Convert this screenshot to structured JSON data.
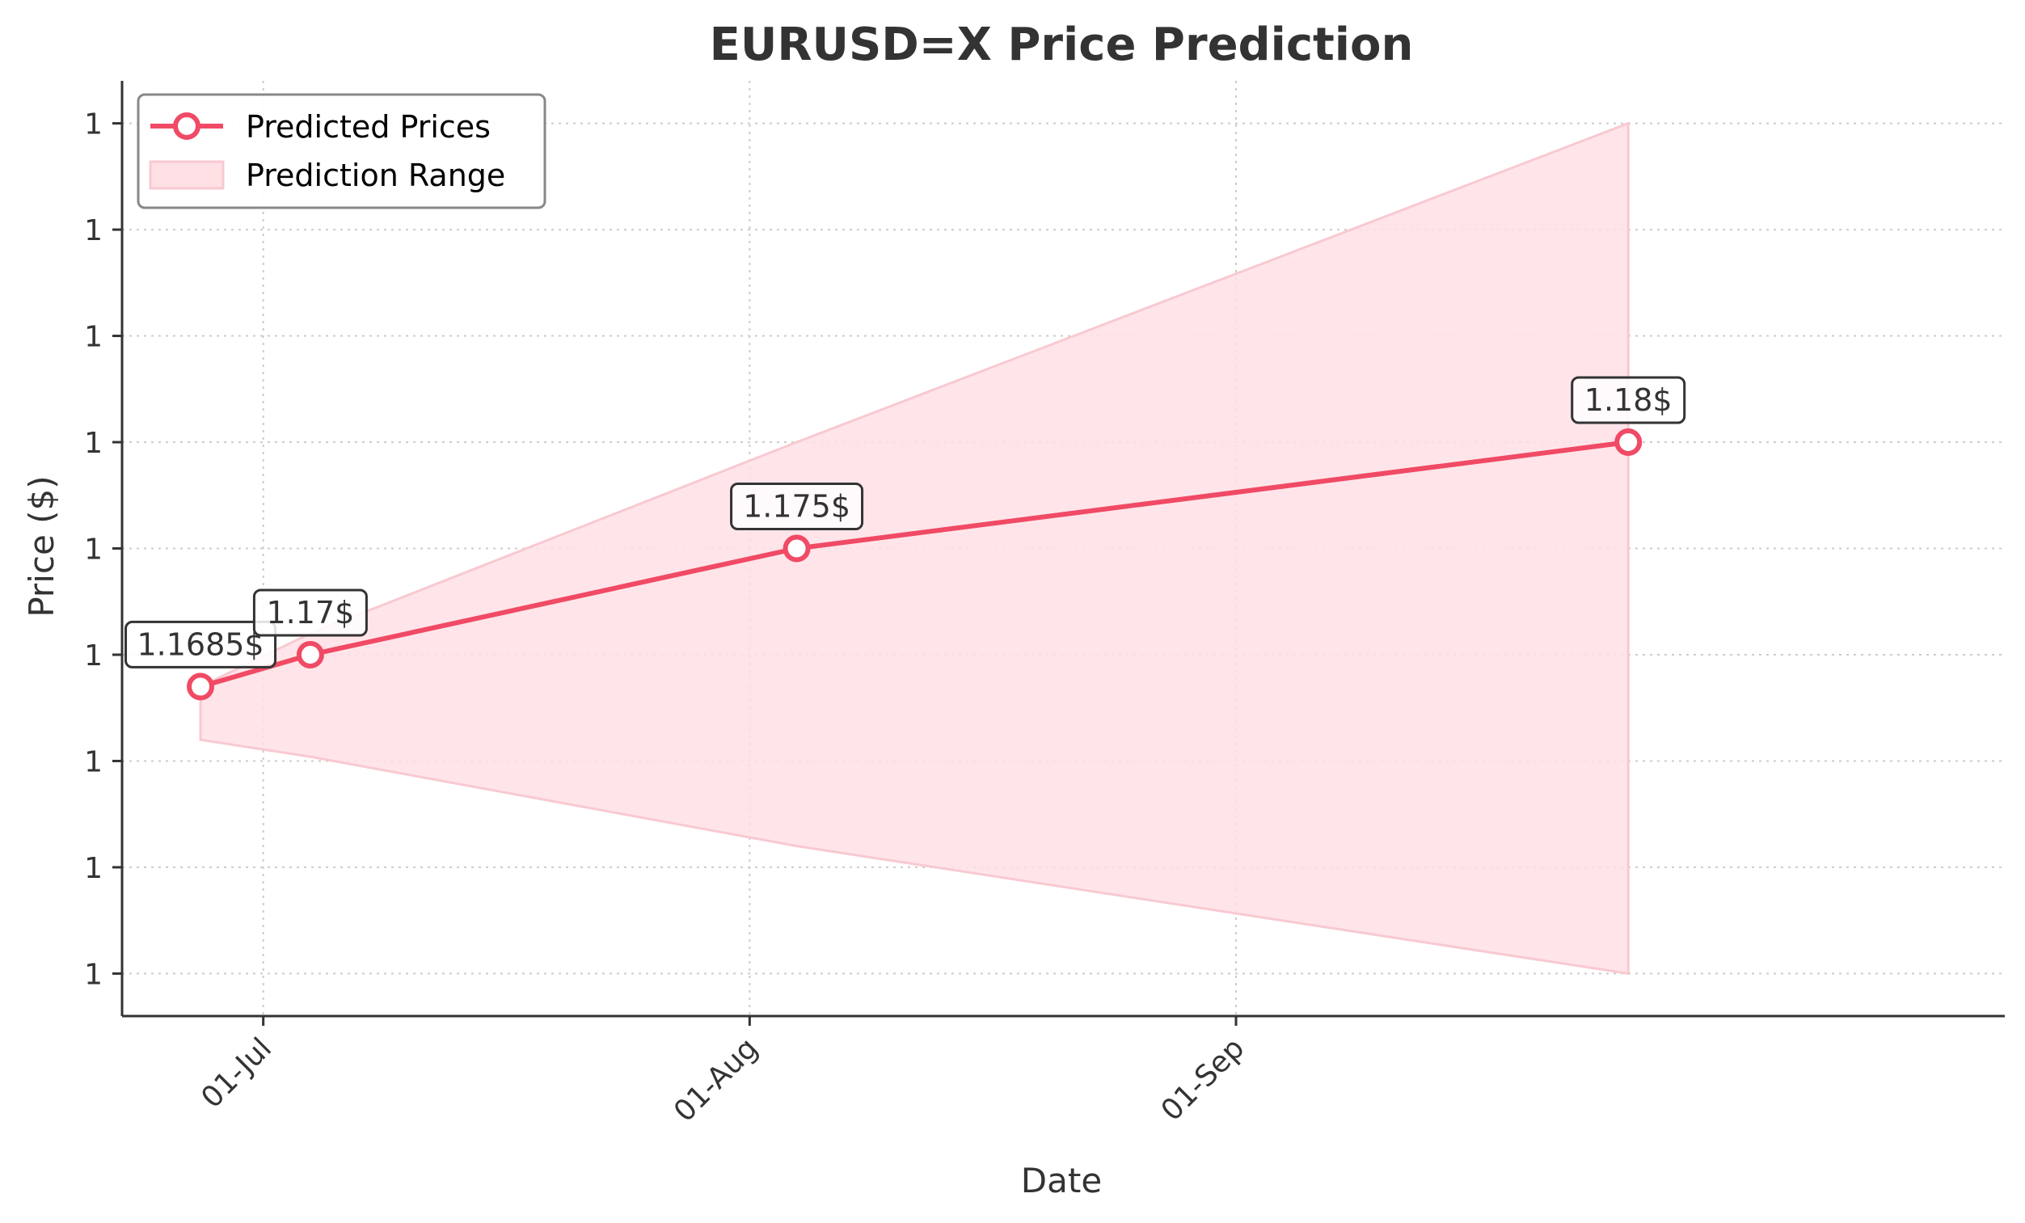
{
  "chart_data": {
    "type": "line",
    "title": "EURUSD=X Price Prediction",
    "xlabel": "Date",
    "ylabel": "Price ($)",
    "x_tick_labels": [
      "01-Jul",
      "01-Aug",
      "01-Sep"
    ],
    "x_ticks": [
      "2025-07-01",
      "2025-08-01",
      "2025-09-01"
    ],
    "xlim": [
      "2025-06-22",
      "2025-10-20"
    ],
    "y_tick_labels": [
      "1",
      "1",
      "1",
      "1",
      "1",
      "1",
      "1",
      "1",
      "1"
    ],
    "y_ticks": [
      1.155,
      1.16,
      1.165,
      1.17,
      1.175,
      1.18,
      1.185,
      1.19,
      1.195
    ],
    "ylim": [
      1.153,
      1.197
    ],
    "grid": true,
    "legend_position": "upper left",
    "series": [
      {
        "name": "Predicted Prices",
        "type": "line",
        "x": [
          "2025-06-27",
          "2025-07-04",
          "2025-08-04",
          "2025-09-26"
        ],
        "y": [
          1.1685,
          1.17,
          1.175,
          1.18
        ],
        "labels": [
          "1.1685$",
          "1.17$",
          "1.175$",
          "1.18$"
        ]
      },
      {
        "name": "Prediction Range",
        "type": "area",
        "x": [
          "2025-06-27",
          "2025-07-04",
          "2025-08-04",
          "2025-09-26"
        ],
        "lower": [
          1.166,
          1.1652,
          1.161,
          1.155
        ],
        "upper": [
          1.1685,
          1.171,
          1.18,
          1.195
        ]
      }
    ],
    "colors": {
      "line": "#f04a65",
      "fill": "#ffe0e5",
      "fill_edge": "#f8c9d1",
      "axis": "#333333",
      "grid": "#cccccc"
    }
  }
}
